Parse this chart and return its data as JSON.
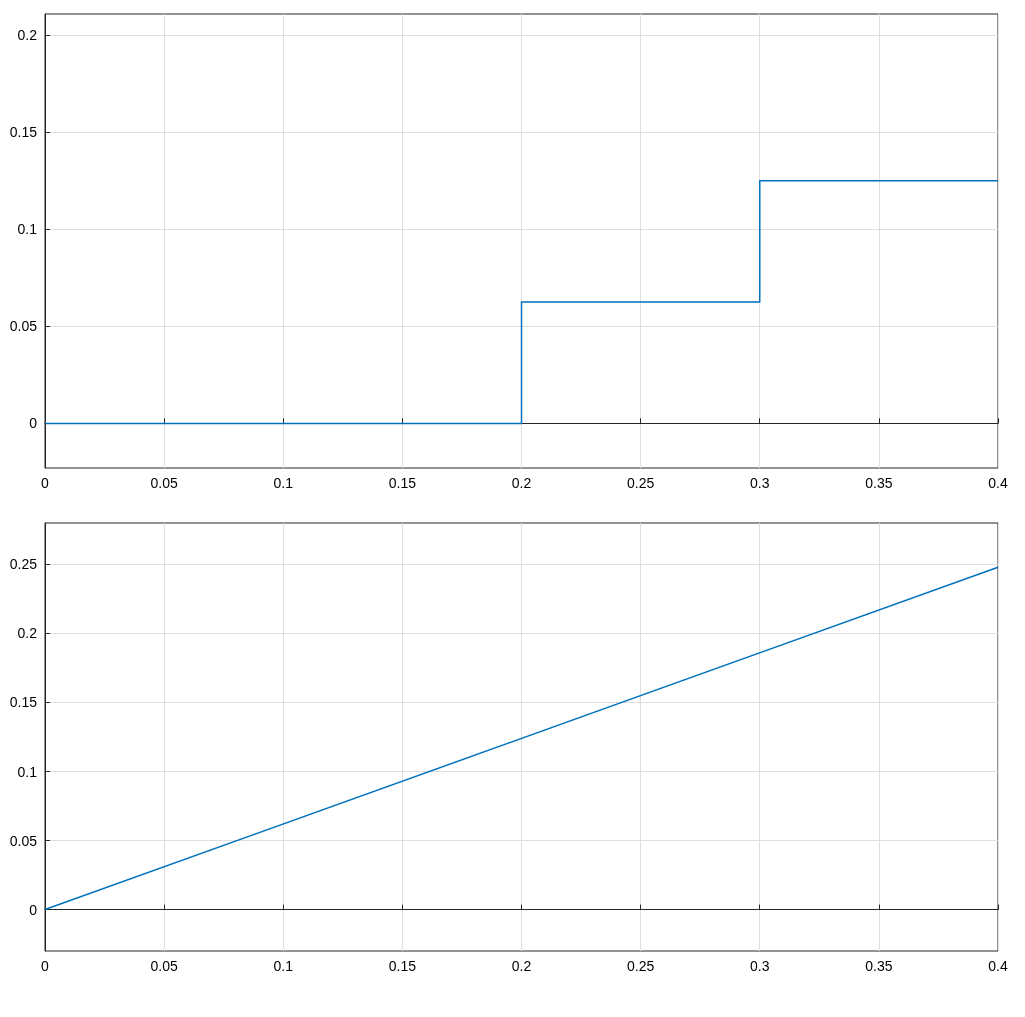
{
  "chart_data": [
    {
      "type": "step",
      "x": [
        0,
        0.2,
        0.3,
        0.4
      ],
      "series": [
        {
          "color": "#0072bd",
          "values": [
            0,
            0.0625,
            0.125,
            0.125
          ]
        }
      ],
      "xlim": [
        0,
        0.4
      ],
      "xticks": [
        0,
        0.05,
        0.1,
        0.15,
        0.2,
        0.25,
        0.3,
        0.35,
        0.4
      ],
      "ylim": [
        -0.023,
        0.211
      ],
      "yticks": [
        0,
        0.05,
        0.1,
        0.15,
        0.2
      ],
      "grid": true
    },
    {
      "type": "line",
      "x": [
        0,
        0.4
      ],
      "series": [
        {
          "color": "#0072bd",
          "values": [
            0,
            0.248
          ]
        }
      ],
      "xlim": [
        0,
        0.4
      ],
      "xticks": [
        0,
        0.05,
        0.1,
        0.15,
        0.2,
        0.25,
        0.3,
        0.35,
        0.4
      ],
      "ylim": [
        -0.03,
        0.28
      ],
      "yticks": [
        0,
        0.05,
        0.1,
        0.15,
        0.2,
        0.25
      ],
      "grid": true
    }
  ]
}
